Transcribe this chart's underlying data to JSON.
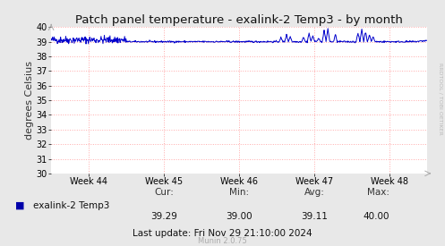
{
  "title": "Patch panel temperature - exalink-2 Temp3 - by month",
  "ylabel": "degrees Celsius",
  "ylim": [
    30,
    40
  ],
  "yticks": [
    30,
    31,
    32,
    33,
    34,
    35,
    36,
    37,
    38,
    39,
    40
  ],
  "xtick_labels": [
    "Week 44",
    "Week 45",
    "Week 46",
    "Week 47",
    "Week 48"
  ],
  "xtick_positions": [
    0.1,
    0.3,
    0.5,
    0.7,
    0.9
  ],
  "bg_color": "#e8e8e8",
  "plot_bg_color": "#ffffff",
  "line_color": "#0000cc",
  "grid_color": "#ffaaaa",
  "legend_label": "exalink-2 Temp3",
  "legend_sq_color": "#0000aa",
  "cur": "39.29",
  "min": "39.00",
  "avg": "39.11",
  "max": "40.00",
  "last_update": "Last update: Fri Nov 29 21:10:00 2024",
  "munin_version": "Munin 2.0.75",
  "watermark": "RRDTOOL / TOBI OETIKER",
  "title_fontsize": 9.5,
  "ylabel_fontsize": 8,
  "tick_fontsize": 7,
  "legend_fontsize": 7.5,
  "stats_fontsize": 7.5,
  "munin_fontsize": 6,
  "watermark_fontsize": 4.5,
  "base_value": 39.0,
  "week44_noise": 0.13,
  "rest_noise": 0.03,
  "spike_positions": [
    0.61,
    0.625,
    0.635,
    0.67,
    0.685,
    0.695,
    0.71,
    0.725,
    0.735,
    0.755,
    0.815,
    0.825,
    0.835,
    0.845,
    0.855
  ],
  "spike_heights": [
    0.28,
    0.48,
    0.36,
    0.32,
    0.58,
    0.42,
    0.28,
    0.78,
    0.88,
    0.48,
    0.58,
    0.88,
    0.68,
    0.48,
    0.36
  ]
}
